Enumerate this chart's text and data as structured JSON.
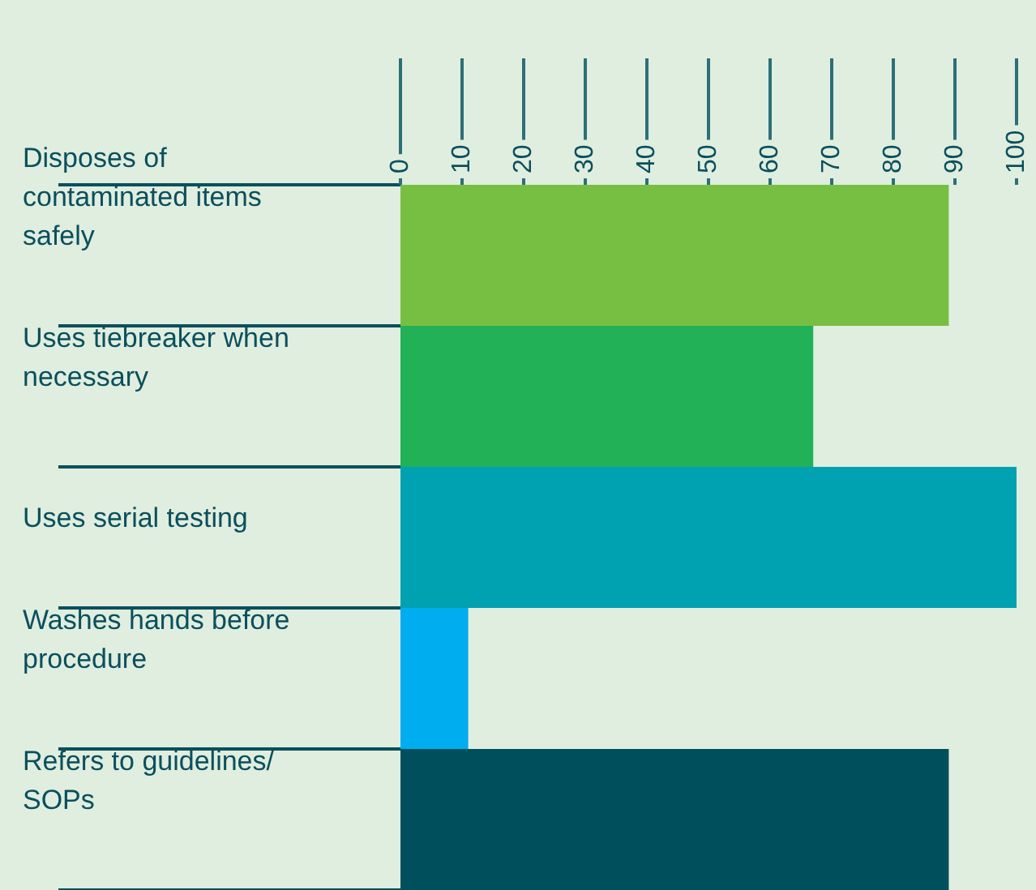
{
  "chart_data": {
    "type": "bar",
    "orientation": "horizontal",
    "categories": [
      "Disposes of contaminated items safely",
      "Uses tiebreaker when necessary",
      "Uses serial testing",
      "Washes hands before procedure",
      "Refers to guidelines/ SOPs"
    ],
    "values": [
      89,
      67,
      100,
      11,
      89
    ],
    "colors": [
      "#77bf43",
      "#22b157",
      "#00a1b1",
      "#00adee",
      "#004f5c"
    ],
    "xlim": [
      0,
      100
    ],
    "xticks": [
      0,
      10,
      20,
      30,
      40,
      50,
      60,
      70,
      80,
      90,
      100
    ],
    "grid": false
  }
}
